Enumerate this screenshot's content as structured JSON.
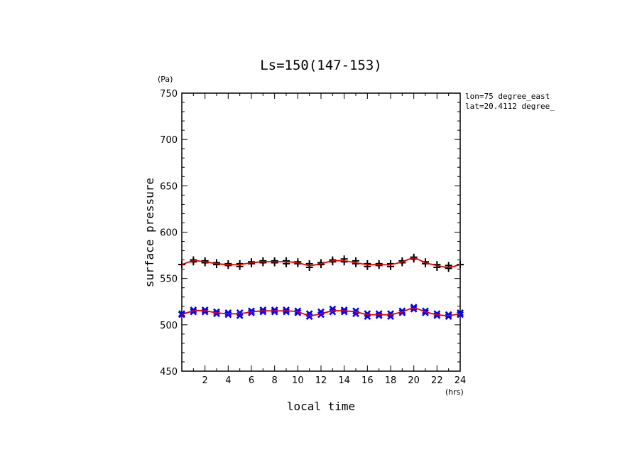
{
  "chart_data": {
    "type": "line",
    "title": "Ls=150(147-153)",
    "xlabel": "local time",
    "xunit": "(hrs)",
    "ylabel": "surface pressure",
    "yunit": "(Pa)",
    "xlim": [
      0,
      24
    ],
    "ylim": [
      450,
      750
    ],
    "xticks": [
      2,
      4,
      6,
      8,
      10,
      12,
      14,
      16,
      18,
      20,
      22,
      24
    ],
    "yticks": [
      450,
      500,
      550,
      600,
      650,
      700,
      750
    ],
    "annotations": [
      "lon=75 degree_east",
      "lat=20.4112 degree_"
    ],
    "grid": false,
    "x": [
      0,
      1,
      2,
      3,
      4,
      5,
      6,
      7,
      8,
      9,
      10,
      11,
      12,
      13,
      14,
      15,
      16,
      17,
      18,
      19,
      20,
      21,
      22,
      23,
      24
    ],
    "series": [
      {
        "marker": "plus",
        "color": "#000000",
        "line_color": "#e00000",
        "values": [
          565,
          569,
          568,
          566,
          565,
          565,
          567,
          568,
          568,
          568,
          567,
          564,
          566,
          569,
          569,
          567,
          565,
          565,
          565,
          568,
          572,
          567,
          564,
          562,
          565
        ],
        "points": [
          [
            0,
            565
          ],
          [
            1,
            568
          ],
          [
            1,
            570
          ],
          [
            2,
            567
          ],
          [
            2,
            569
          ],
          [
            3,
            565
          ],
          [
            3,
            567
          ],
          [
            4,
            564
          ],
          [
            4,
            566
          ],
          [
            5,
            563
          ],
          [
            5,
            566
          ],
          [
            6,
            566
          ],
          [
            6,
            568
          ],
          [
            7,
            567
          ],
          [
            7,
            569
          ],
          [
            8,
            567
          ],
          [
            8,
            569
          ],
          [
            9,
            566
          ],
          [
            9,
            569
          ],
          [
            10,
            566
          ],
          [
            10,
            568
          ],
          [
            11,
            562
          ],
          [
            11,
            566
          ],
          [
            12,
            565
          ],
          [
            12,
            567
          ],
          [
            13,
            568
          ],
          [
            13,
            570
          ],
          [
            14,
            568
          ],
          [
            14,
            571
          ],
          [
            15,
            566
          ],
          [
            15,
            569
          ],
          [
            16,
            563
          ],
          [
            16,
            566
          ],
          [
            17,
            564
          ],
          [
            17,
            566
          ],
          [
            18,
            563
          ],
          [
            18,
            566
          ],
          [
            19,
            567
          ],
          [
            19,
            569
          ],
          [
            20,
            571
          ],
          [
            20,
            573
          ],
          [
            21,
            566
          ],
          [
            21,
            568
          ],
          [
            22,
            562
          ],
          [
            22,
            565
          ],
          [
            23,
            561
          ],
          [
            23,
            564
          ],
          [
            24,
            565
          ]
        ]
      },
      {
        "marker": "x",
        "color": "#0000ff",
        "line_color": "#e00000",
        "values": [
          511,
          515,
          515,
          513,
          512,
          512,
          514,
          515,
          515,
          515,
          514,
          510,
          512,
          515,
          515,
          514,
          511,
          511,
          511,
          514,
          518,
          514,
          511,
          510,
          512
        ],
        "points": [
          [
            0,
            511
          ],
          [
            0,
            512
          ],
          [
            1,
            514
          ],
          [
            1,
            516
          ],
          [
            2,
            514
          ],
          [
            2,
            516
          ],
          [
            3,
            512
          ],
          [
            3,
            514
          ],
          [
            4,
            511
          ],
          [
            4,
            513
          ],
          [
            5,
            510
          ],
          [
            5,
            513
          ],
          [
            6,
            513
          ],
          [
            6,
            515
          ],
          [
            7,
            514
          ],
          [
            7,
            516
          ],
          [
            8,
            514
          ],
          [
            8,
            516
          ],
          [
            9,
            514
          ],
          [
            9,
            516
          ],
          [
            10,
            513
          ],
          [
            10,
            515
          ],
          [
            11,
            509
          ],
          [
            11,
            512
          ],
          [
            12,
            511
          ],
          [
            12,
            514
          ],
          [
            13,
            514
          ],
          [
            13,
            517
          ],
          [
            14,
            514
          ],
          [
            14,
            516
          ],
          [
            15,
            512
          ],
          [
            15,
            515
          ],
          [
            16,
            509
          ],
          [
            16,
            512
          ],
          [
            17,
            510
          ],
          [
            17,
            512
          ],
          [
            18,
            509
          ],
          [
            18,
            512
          ],
          [
            19,
            513
          ],
          [
            19,
            515
          ],
          [
            20,
            517
          ],
          [
            20,
            519
          ],
          [
            21,
            513
          ],
          [
            21,
            515
          ],
          [
            22,
            510
          ],
          [
            22,
            512
          ],
          [
            23,
            509
          ],
          [
            23,
            511
          ],
          [
            24,
            511
          ],
          [
            24,
            513
          ]
        ]
      }
    ]
  }
}
